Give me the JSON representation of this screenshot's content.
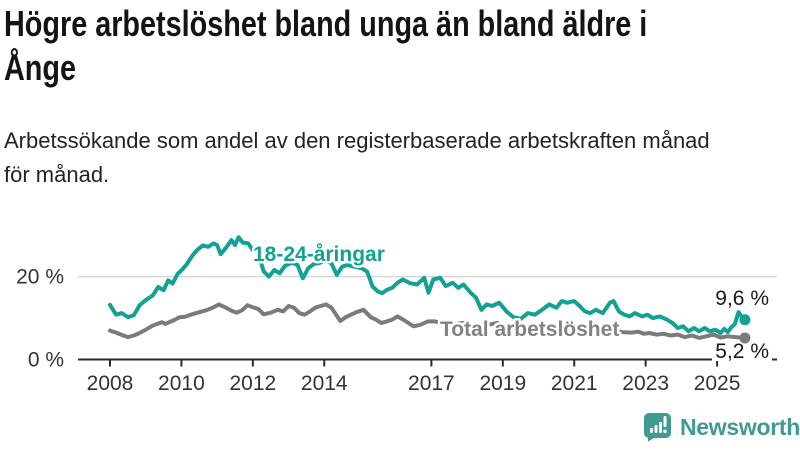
{
  "header": {
    "title": "Högre arbetslöshet bland unga än bland äldre i Ånge",
    "title_lines": [
      "Högre arbetslöshet bland unga än bland äldre i",
      "Ånge"
    ],
    "subtitle_lines": [
      "Arbetssökande som andel av den registerbaserade arbetskraften månad",
      "för månad."
    ]
  },
  "chart_data": {
    "type": "line",
    "x_axis": {
      "tick_years": [
        2008,
        2010,
        2012,
        2014,
        2017,
        2019,
        2021,
        2023,
        2025
      ],
      "data_start": 2008.0,
      "data_end": 2025.78
    },
    "y_axis": {
      "ticks": [
        {
          "value": 0,
          "label": "0 %"
        },
        {
          "value": 20,
          "label": "20 %"
        }
      ],
      "unit": "%",
      "range": [
        0,
        34
      ]
    },
    "grid": {
      "y_gridline_at": 20,
      "color": "#d8d8d8"
    },
    "axis_color": "#2b2b2b",
    "tick_text_color": "#333333",
    "value_label_color": "#1a1a1a",
    "series": [
      {
        "name": "18-24-åringar",
        "color": "#12a192",
        "end_label": "9,6 %",
        "end_value": 9.6,
        "points": [
          [
            2008.0,
            13.2
          ],
          [
            2008.17,
            10.8
          ],
          [
            2008.33,
            11.2
          ],
          [
            2008.5,
            10.2
          ],
          [
            2008.67,
            10.7
          ],
          [
            2008.83,
            13.1
          ],
          [
            2009.0,
            14.3
          ],
          [
            2009.2,
            15.5
          ],
          [
            2009.35,
            17.5
          ],
          [
            2009.5,
            16.7
          ],
          [
            2009.63,
            19.1
          ],
          [
            2009.75,
            18.3
          ],
          [
            2009.9,
            20.7
          ],
          [
            2010.0,
            21.5
          ],
          [
            2010.15,
            23.0
          ],
          [
            2010.3,
            25.0
          ],
          [
            2010.45,
            26.5
          ],
          [
            2010.6,
            27.5
          ],
          [
            2010.75,
            27.2
          ],
          [
            2010.9,
            28.0
          ],
          [
            2011.0,
            27.6
          ],
          [
            2011.1,
            25.4
          ],
          [
            2011.25,
            27.0
          ],
          [
            2011.4,
            28.8
          ],
          [
            2011.5,
            27.6
          ],
          [
            2011.6,
            29.5
          ],
          [
            2011.72,
            28.2
          ],
          [
            2011.87,
            28.0
          ],
          [
            2012.0,
            26.4
          ],
          [
            2012.1,
            27.2
          ],
          [
            2012.3,
            21.3
          ],
          [
            2012.45,
            20.0
          ],
          [
            2012.6,
            21.6
          ],
          [
            2012.75,
            20.8
          ],
          [
            2012.9,
            22.6
          ],
          [
            2013.1,
            23.4
          ],
          [
            2013.25,
            22.8
          ],
          [
            2013.4,
            19.6
          ],
          [
            2013.55,
            22.0
          ],
          [
            2013.7,
            23.0
          ],
          [
            2013.9,
            23.4
          ],
          [
            2014.05,
            23.8
          ],
          [
            2014.2,
            23.2
          ],
          [
            2014.35,
            20.4
          ],
          [
            2014.5,
            22.4
          ],
          [
            2014.65,
            22.8
          ],
          [
            2014.85,
            22.4
          ],
          [
            2015.05,
            22.0
          ],
          [
            2015.2,
            21.2
          ],
          [
            2015.35,
            17.6
          ],
          [
            2015.5,
            16.4
          ],
          [
            2015.62,
            16.0
          ],
          [
            2015.75,
            16.8
          ],
          [
            2015.9,
            17.3
          ],
          [
            2016.05,
            18.5
          ],
          [
            2016.2,
            19.3
          ],
          [
            2016.4,
            18.4
          ],
          [
            2016.6,
            18.1
          ],
          [
            2016.8,
            19.7
          ],
          [
            2016.92,
            16.1
          ],
          [
            2017.05,
            19.3
          ],
          [
            2017.25,
            19.7
          ],
          [
            2017.4,
            17.7
          ],
          [
            2017.6,
            18.5
          ],
          [
            2017.75,
            17.3
          ],
          [
            2017.9,
            18.1
          ],
          [
            2018.1,
            16.1
          ],
          [
            2018.25,
            14.9
          ],
          [
            2018.4,
            12.0
          ],
          [
            2018.55,
            13.3
          ],
          [
            2018.7,
            12.9
          ],
          [
            2018.9,
            13.7
          ],
          [
            2019.1,
            11.6
          ],
          [
            2019.3,
            10.2
          ],
          [
            2019.5,
            9.8
          ],
          [
            2019.7,
            11.2
          ],
          [
            2019.9,
            10.8
          ],
          [
            2020.1,
            12.0
          ],
          [
            2020.3,
            13.3
          ],
          [
            2020.5,
            12.5
          ],
          [
            2020.65,
            14.1
          ],
          [
            2020.8,
            13.7
          ],
          [
            2021.0,
            14.1
          ],
          [
            2021.15,
            12.9
          ],
          [
            2021.3,
            11.6
          ],
          [
            2021.45,
            11.2
          ],
          [
            2021.6,
            12.0
          ],
          [
            2021.8,
            11.2
          ],
          [
            2022.0,
            13.7
          ],
          [
            2022.1,
            14.1
          ],
          [
            2022.25,
            11.6
          ],
          [
            2022.4,
            10.8
          ],
          [
            2022.55,
            10.4
          ],
          [
            2022.7,
            11.2
          ],
          [
            2022.9,
            10.4
          ],
          [
            2023.05,
            10.8
          ],
          [
            2023.2,
            10.0
          ],
          [
            2023.4,
            10.4
          ],
          [
            2023.6,
            9.6
          ],
          [
            2023.75,
            8.8
          ],
          [
            2023.9,
            7.6
          ],
          [
            2024.05,
            8.0
          ],
          [
            2024.2,
            6.8
          ],
          [
            2024.35,
            7.6
          ],
          [
            2024.5,
            6.8
          ],
          [
            2024.65,
            7.6
          ],
          [
            2024.8,
            6.8
          ],
          [
            2024.95,
            7.2
          ],
          [
            2025.1,
            6.4
          ],
          [
            2025.2,
            7.4
          ],
          [
            2025.3,
            6.6
          ],
          [
            2025.4,
            7.8
          ],
          [
            2025.5,
            8.6
          ],
          [
            2025.6,
            11.4
          ],
          [
            2025.7,
            10.2
          ],
          [
            2025.78,
            9.6
          ]
        ]
      },
      {
        "name": "Total arbetslöshet",
        "color": "#7b7b7b",
        "label_color": "#828282",
        "end_label": "5,2 %",
        "end_value": 5.2,
        "points": [
          [
            2008.0,
            7.0
          ],
          [
            2008.17,
            6.5
          ],
          [
            2008.37,
            5.8
          ],
          [
            2008.5,
            5.4
          ],
          [
            2008.67,
            5.8
          ],
          [
            2008.83,
            6.4
          ],
          [
            2009.0,
            7.2
          ],
          [
            2009.2,
            8.2
          ],
          [
            2009.45,
            9.0
          ],
          [
            2009.55,
            8.6
          ],
          [
            2009.77,
            9.4
          ],
          [
            2009.95,
            10.2
          ],
          [
            2010.1,
            10.3
          ],
          [
            2010.3,
            10.9
          ],
          [
            2010.5,
            11.4
          ],
          [
            2010.7,
            11.9
          ],
          [
            2010.9,
            12.6
          ],
          [
            2011.05,
            13.3
          ],
          [
            2011.2,
            12.7
          ],
          [
            2011.4,
            11.8
          ],
          [
            2011.55,
            11.3
          ],
          [
            2011.7,
            11.9
          ],
          [
            2011.85,
            13.1
          ],
          [
            2012.0,
            12.6
          ],
          [
            2012.15,
            12.2
          ],
          [
            2012.3,
            10.9
          ],
          [
            2012.5,
            11.3
          ],
          [
            2012.7,
            12.0
          ],
          [
            2012.85,
            11.6
          ],
          [
            2013.0,
            12.9
          ],
          [
            2013.15,
            12.5
          ],
          [
            2013.3,
            11.2
          ],
          [
            2013.45,
            10.8
          ],
          [
            2013.6,
            11.6
          ],
          [
            2013.75,
            12.5
          ],
          [
            2013.9,
            12.9
          ],
          [
            2014.05,
            13.3
          ],
          [
            2014.2,
            12.5
          ],
          [
            2014.45,
            9.3
          ],
          [
            2014.6,
            10.2
          ],
          [
            2014.75,
            10.8
          ],
          [
            2014.9,
            11.4
          ],
          [
            2015.1,
            12.0
          ],
          [
            2015.3,
            10.2
          ],
          [
            2015.45,
            9.6
          ],
          [
            2015.6,
            8.8
          ],
          [
            2015.75,
            9.2
          ],
          [
            2015.9,
            9.6
          ],
          [
            2016.05,
            10.4
          ],
          [
            2016.25,
            9.4
          ],
          [
            2016.5,
            8.0
          ],
          [
            2016.7,
            8.4
          ],
          [
            2016.9,
            9.2
          ],
          [
            2017.1,
            9.2
          ],
          [
            2017.3,
            8.8
          ],
          [
            2017.5,
            8.4
          ],
          [
            2017.7,
            8.6
          ],
          [
            2017.9,
            8.8
          ],
          [
            2018.1,
            8.4
          ],
          [
            2018.35,
            8.0
          ],
          [
            2018.6,
            8.4
          ],
          [
            2018.85,
            8.8
          ],
          [
            2019.1,
            7.8
          ],
          [
            2019.35,
            7.2
          ],
          [
            2019.6,
            7.0
          ],
          [
            2019.85,
            7.4
          ],
          [
            2020.1,
            7.8
          ],
          [
            2020.35,
            8.3
          ],
          [
            2020.6,
            8.0
          ],
          [
            2020.85,
            8.2
          ],
          [
            2021.1,
            8.0
          ],
          [
            2021.35,
            7.6
          ],
          [
            2021.6,
            7.3
          ],
          [
            2021.85,
            7.1
          ],
          [
            2022.1,
            6.9
          ],
          [
            2022.35,
            6.6
          ],
          [
            2022.6,
            6.5
          ],
          [
            2022.8,
            6.7
          ],
          [
            2022.95,
            6.2
          ],
          [
            2023.1,
            6.4
          ],
          [
            2023.3,
            6.0
          ],
          [
            2023.5,
            6.2
          ],
          [
            2023.7,
            5.8
          ],
          [
            2023.9,
            6.0
          ],
          [
            2024.1,
            5.4
          ],
          [
            2024.3,
            5.8
          ],
          [
            2024.5,
            5.2
          ],
          [
            2024.7,
            5.6
          ],
          [
            2024.9,
            6.0
          ],
          [
            2025.1,
            5.3
          ],
          [
            2025.3,
            5.6
          ],
          [
            2025.5,
            5.4
          ],
          [
            2025.65,
            5.3
          ],
          [
            2025.78,
            5.2
          ]
        ]
      }
    ]
  },
  "footer": {
    "brand": "Newsworthy",
    "brand_color": "#3f9a93",
    "logo_icon": "bar-chart-speech-bubble-icon"
  }
}
